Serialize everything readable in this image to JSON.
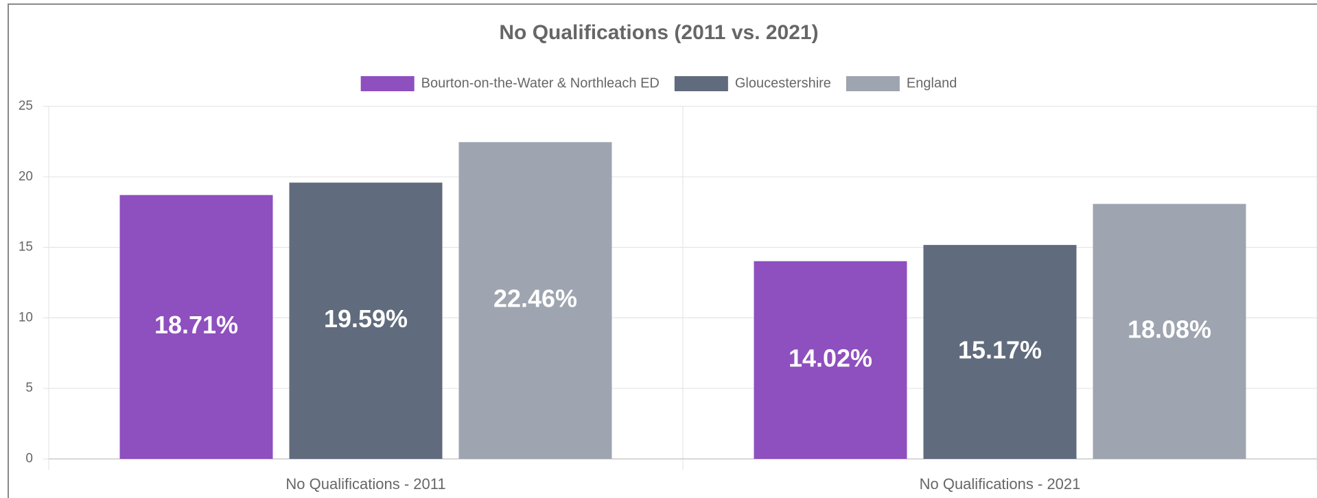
{
  "chart_data": {
    "type": "bar",
    "title": "No Qualifications (2011 vs. 2021)",
    "categories": [
      "No Qualifications - 2011",
      "No Qualifications - 2021"
    ],
    "series": [
      {
        "name": "Bourton-on-the-Water & Northleach ED",
        "color": "#8e4fbf",
        "values": [
          18.71,
          14.02
        ],
        "value_labels": [
          "18.71%",
          "14.02%"
        ]
      },
      {
        "name": "Gloucestershire",
        "color": "#606b7d",
        "values": [
          19.59,
          15.17
        ],
        "value_labels": [
          "19.59%",
          "15.17%"
        ]
      },
      {
        "name": "England",
        "color": "#9ea4b0",
        "values": [
          22.46,
          18.08
        ],
        "value_labels": [
          "22.46%",
          "18.08%"
        ]
      }
    ],
    "ylim": [
      0,
      25
    ],
    "yticks": [
      0,
      5,
      10,
      15,
      20,
      25
    ],
    "grid": true,
    "legend": "top"
  }
}
